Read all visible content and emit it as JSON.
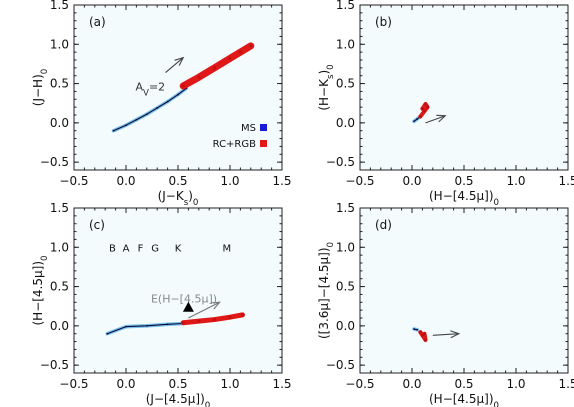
{
  "chart_data": [
    {
      "panel": "(a)",
      "type": "scatter",
      "xlabel": "(J−K",
      "xlabel_sub": "s",
      "xlabel_tail": ")",
      "xlabel_tail_sub": "0",
      "ylabel": "(J−H)",
      "ylabel_sub": "0",
      "xlim": [
        -0.5,
        1.5
      ],
      "ylim": [
        -0.6,
        1.5
      ],
      "xticks": [
        "−0.5",
        "0.0",
        "0.5",
        "1.0",
        "1.5"
      ],
      "yticks": [
        "−0.5",
        "0.0",
        "0.5",
        "1.0",
        "1.5"
      ],
      "grid": false,
      "legend": {
        "placement": "bottom-right",
        "entries": [
          {
            "label": "MS",
            "color": "#1a1ad6"
          },
          {
            "label": "RC+RGB",
            "color": "#e01818"
          }
        ]
      },
      "series": [
        {
          "name": "MS",
          "color": "#1a1ad6",
          "points": [
            [
              -0.12,
              -0.1
            ],
            [
              0.0,
              -0.03
            ],
            [
              0.1,
              0.04
            ],
            [
              0.2,
              0.11
            ],
            [
              0.3,
              0.19
            ],
            [
              0.4,
              0.27
            ],
            [
              0.5,
              0.36
            ],
            [
              0.58,
              0.44
            ]
          ]
        },
        {
          "name": "RC+RGB",
          "color": "#e01818",
          "points": [
            [
              0.55,
              0.47
            ],
            [
              0.7,
              0.58
            ],
            [
              0.85,
              0.7
            ],
            [
              1.0,
              0.82
            ],
            [
              1.1,
              0.9
            ],
            [
              1.2,
              0.98
            ]
          ]
        }
      ],
      "reddening_vector": {
        "label_main": "A",
        "label_sub": "V",
        "label_tail": "=2",
        "from": [
          0.38,
          0.64
        ],
        "to": [
          0.55,
          0.83
        ]
      }
    },
    {
      "panel": "(b)",
      "type": "scatter",
      "xlabel": "(H−[4.5μ])",
      "xlabel_sub": "0",
      "ylabel": "(H−K",
      "ylabel_sub": "s",
      "ylabel_tail": ")",
      "ylabel_tail_sub": "0",
      "xlim": [
        -0.5,
        1.5
      ],
      "ylim": [
        -0.6,
        1.5
      ],
      "xticks": [
        "−0.5",
        "0.0",
        "0.5",
        "1.0",
        "1.5"
      ],
      "yticks": [
        "−0.5",
        "0.0",
        "0.5",
        "1.0",
        "1.5"
      ],
      "grid": false,
      "series": [
        {
          "name": "MS",
          "color": "#1a1ad6",
          "points": [
            [
              0.02,
              0.02
            ],
            [
              0.05,
              0.05
            ],
            [
              0.08,
              0.08
            ]
          ]
        },
        {
          "name": "RC+RGB",
          "color": "#e01818",
          "points": [
            [
              0.08,
              0.08
            ],
            [
              0.12,
              0.15
            ],
            [
              0.15,
              0.2
            ],
            [
              0.13,
              0.24
            ],
            [
              0.1,
              0.18
            ]
          ]
        }
      ],
      "reddening_vector": {
        "from": [
          0.13,
          0.0
        ],
        "to": [
          0.32,
          0.09
        ]
      }
    },
    {
      "panel": "(c)",
      "type": "scatter",
      "xlabel": "(J−[4.5μ])",
      "xlabel_sub": "0",
      "ylabel": "(H−[4.5μ])",
      "ylabel_sub": "0",
      "xlim": [
        -0.5,
        1.5
      ],
      "ylim": [
        -0.6,
        1.5
      ],
      "xticks": [
        "−0.5",
        "0.0",
        "0.5",
        "1.0",
        "1.5"
      ],
      "yticks": [
        "−0.5",
        "0.0",
        "0.5",
        "1.0",
        "1.5"
      ],
      "grid": false,
      "spectral_types": [
        {
          "label": "B",
          "x": -0.13
        },
        {
          "label": "A",
          "x": 0.0
        },
        {
          "label": "F",
          "x": 0.14
        },
        {
          "label": "G",
          "x": 0.28
        },
        {
          "label": "K",
          "x": 0.5
        },
        {
          "label": "M",
          "x": 0.97
        }
      ],
      "spectral_types_y": 1.0,
      "series": [
        {
          "name": "MS",
          "color": "#1a1ad6",
          "points": [
            [
              -0.18,
              -0.1
            ],
            [
              0.0,
              -0.01
            ],
            [
              0.2,
              0.0
            ],
            [
              0.4,
              0.02
            ],
            [
              0.55,
              0.03
            ]
          ]
        },
        {
          "name": "RC+RGB",
          "color": "#e01818",
          "points": [
            [
              0.55,
              0.04
            ],
            [
              0.7,
              0.06
            ],
            [
              0.85,
              0.08
            ],
            [
              1.0,
              0.11
            ],
            [
              1.12,
              0.14
            ]
          ]
        }
      ],
      "reddening_vector": {
        "label": "E(H−[4.5μ])",
        "from": [
          0.6,
          0.1
        ],
        "to": [
          0.9,
          0.3
        ]
      },
      "marker": {
        "symbol": "triangle",
        "x": 0.6,
        "y": 0.23
      }
    },
    {
      "panel": "(d)",
      "type": "scatter",
      "xlabel": "(H−[4.5μ])",
      "xlabel_sub": "0",
      "ylabel": "([3.6μ]−[4.5μ])",
      "ylabel_sub": "0",
      "xlim": [
        -0.5,
        1.5
      ],
      "ylim": [
        -0.6,
        1.5
      ],
      "xticks": [
        "−0.5",
        "0.0",
        "0.5",
        "1.0",
        "1.5"
      ],
      "yticks": [
        "−0.5",
        "0.0",
        "0.5",
        "1.0",
        "1.5"
      ],
      "grid": false,
      "series": [
        {
          "name": "MS",
          "color": "#1a1ad6",
          "points": [
            [
              0.02,
              -0.04
            ],
            [
              0.05,
              -0.05
            ]
          ]
        },
        {
          "name": "RC+RGB",
          "color": "#e01818",
          "points": [
            [
              0.08,
              -0.08
            ],
            [
              0.1,
              -0.12
            ],
            [
              0.13,
              -0.18
            ],
            [
              0.12,
              -0.1
            ]
          ]
        }
      ],
      "reddening_vector": {
        "from": [
          0.2,
          -0.12
        ],
        "to": [
          0.45,
          -0.1
        ]
      }
    }
  ]
}
